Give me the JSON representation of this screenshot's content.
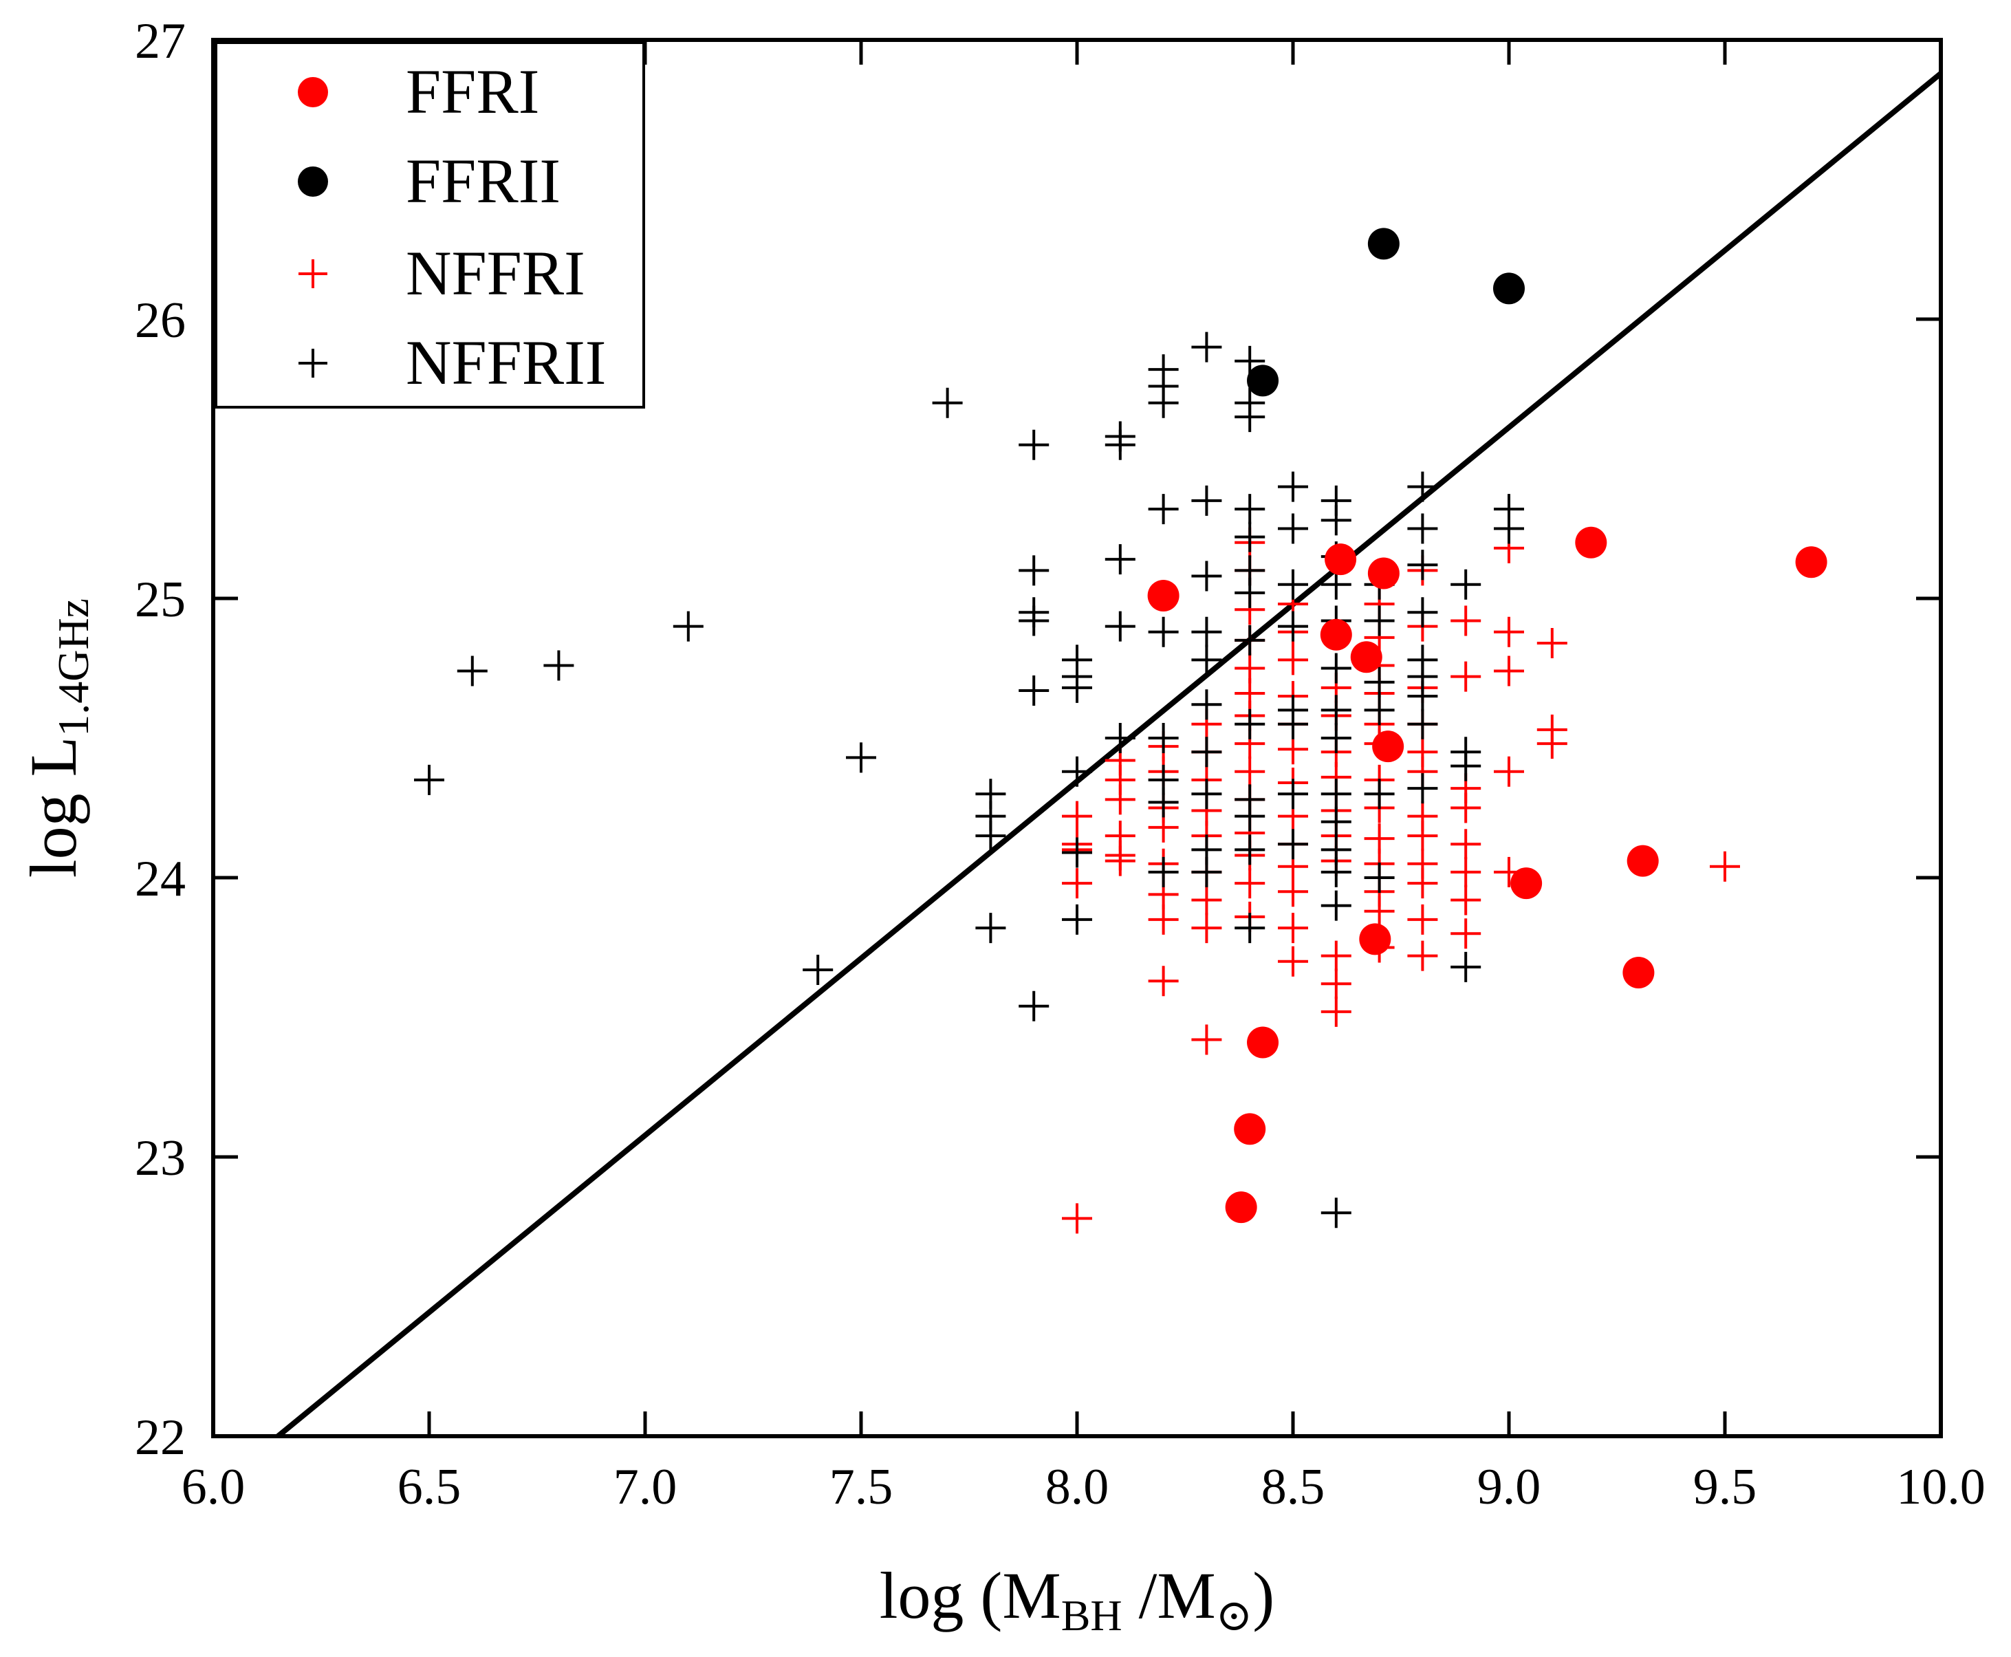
{
  "chart_data": {
    "type": "scatter",
    "title": "",
    "xlabel": "log (M_BH /M_⊙)",
    "ylabel": "log L_1.4GHz",
    "xlabel_parts": {
      "pre": "log (M",
      "sub": "BH",
      "mid": " /M",
      "sub2": "⊙",
      "post": ")"
    },
    "ylabel_parts": {
      "pre": "log L",
      "sub": "1.4GHz"
    },
    "xlim": [
      6.0,
      10.0
    ],
    "ylim": [
      22,
      27
    ],
    "xticks": [
      "6.0",
      "6.5",
      "7.0",
      "7.5",
      "8.0",
      "8.5",
      "9.0",
      "9.5",
      "10.0"
    ],
    "yticks": [
      "22",
      "23",
      "24",
      "25",
      "26",
      "27"
    ],
    "legend_position": "top-left",
    "fit_line": {
      "x": [
        6.15,
        10.0
      ],
      "y": [
        22.0,
        26.88
      ]
    },
    "series": [
      {
        "name": "FFRI",
        "marker": "circle",
        "color": "#ff0000",
        "points": [
          [
            8.2,
            25.01
          ],
          [
            8.61,
            25.14
          ],
          [
            8.71,
            25.09
          ],
          [
            8.6,
            24.87
          ],
          [
            8.67,
            24.79
          ],
          [
            8.72,
            24.47
          ],
          [
            8.69,
            23.78
          ],
          [
            8.43,
            23.41
          ],
          [
            8.4,
            23.1
          ],
          [
            8.38,
            22.82
          ],
          [
            9.04,
            23.98
          ],
          [
            9.19,
            25.2
          ],
          [
            9.31,
            24.06
          ],
          [
            9.3,
            23.66
          ],
          [
            9.7,
            25.13
          ]
        ]
      },
      {
        "name": "FFRII",
        "marker": "circle",
        "color": "#000000",
        "points": [
          [
            8.71,
            26.27
          ],
          [
            9.0,
            26.11
          ],
          [
            8.43,
            25.78
          ]
        ]
      },
      {
        "name": "NFFRI",
        "marker": "plus",
        "color": "#ff0000",
        "points": [
          [
            8.0,
            22.78
          ],
          [
            8.3,
            23.42
          ],
          [
            8.2,
            23.63
          ],
          [
            8.6,
            23.52
          ],
          [
            8.6,
            23.62
          ],
          [
            8.5,
            23.7
          ],
          [
            8.6,
            23.72
          ],
          [
            8.7,
            23.75
          ],
          [
            8.8,
            23.72
          ],
          [
            8.9,
            23.8
          ],
          [
            8.2,
            23.85
          ],
          [
            8.3,
            23.82
          ],
          [
            8.4,
            23.86
          ],
          [
            8.5,
            23.82
          ],
          [
            8.7,
            23.88
          ],
          [
            8.8,
            23.85
          ],
          [
            8.2,
            23.94
          ],
          [
            8.3,
            23.92
          ],
          [
            8.4,
            23.98
          ],
          [
            8.5,
            23.95
          ],
          [
            8.7,
            23.95
          ],
          [
            8.8,
            23.98
          ],
          [
            8.9,
            23.92
          ],
          [
            8.0,
            23.98
          ],
          [
            8.1,
            24.06
          ],
          [
            8.2,
            24.05
          ],
          [
            8.3,
            24.02
          ],
          [
            8.4,
            24.08
          ],
          [
            8.5,
            24.04
          ],
          [
            8.6,
            24.06
          ],
          [
            8.7,
            24.05
          ],
          [
            8.8,
            24.05
          ],
          [
            8.9,
            24.02
          ],
          [
            8.0,
            24.12
          ],
          [
            8.1,
            24.15
          ],
          [
            8.2,
            24.18
          ],
          [
            8.3,
            24.15
          ],
          [
            8.4,
            24.16
          ],
          [
            8.5,
            24.12
          ],
          [
            8.6,
            24.15
          ],
          [
            8.7,
            24.14
          ],
          [
            8.8,
            24.15
          ],
          [
            8.9,
            24.12
          ],
          [
            8.0,
            24.22
          ],
          [
            8.1,
            24.28
          ],
          [
            8.2,
            24.25
          ],
          [
            8.3,
            24.24
          ],
          [
            8.4,
            24.28
          ],
          [
            8.5,
            24.22
          ],
          [
            8.6,
            24.24
          ],
          [
            8.7,
            24.25
          ],
          [
            8.8,
            24.22
          ],
          [
            8.9,
            24.25
          ],
          [
            8.1,
            24.35
          ],
          [
            8.2,
            24.38
          ],
          [
            8.3,
            24.35
          ],
          [
            8.4,
            24.38
          ],
          [
            8.5,
            24.34
          ],
          [
            8.6,
            24.36
          ],
          [
            8.7,
            24.35
          ],
          [
            8.8,
            24.38
          ],
          [
            8.9,
            24.32
          ],
          [
            8.1,
            24.42
          ],
          [
            8.2,
            24.47
          ],
          [
            8.3,
            24.45
          ],
          [
            8.4,
            24.48
          ],
          [
            8.5,
            24.46
          ],
          [
            8.6,
            24.45
          ],
          [
            8.7,
            24.48
          ],
          [
            8.8,
            24.45
          ],
          [
            8.3,
            24.55
          ],
          [
            8.4,
            24.58
          ],
          [
            8.5,
            24.55
          ],
          [
            8.6,
            24.58
          ],
          [
            8.7,
            24.55
          ],
          [
            8.8,
            24.55
          ],
          [
            8.4,
            24.66
          ],
          [
            8.5,
            24.65
          ],
          [
            8.6,
            24.68
          ],
          [
            8.7,
            24.66
          ],
          [
            8.8,
            24.68
          ],
          [
            8.4,
            24.75
          ],
          [
            8.5,
            24.78
          ],
          [
            8.7,
            24.76
          ],
          [
            8.9,
            24.72
          ],
          [
            8.4,
            24.85
          ],
          [
            8.5,
            24.88
          ],
          [
            8.7,
            24.86
          ],
          [
            8.8,
            24.9
          ],
          [
            8.9,
            24.92
          ],
          [
            8.4,
            24.96
          ],
          [
            8.5,
            24.98
          ],
          [
            8.7,
            24.98
          ],
          [
            8.4,
            25.1
          ],
          [
            8.4,
            25.2
          ],
          [
            8.8,
            25.1
          ],
          [
            9.0,
            24.38
          ],
          [
            9.0,
            24.74
          ],
          [
            9.0,
            24.88
          ],
          [
            9.0,
            25.18
          ],
          [
            9.1,
            24.48
          ],
          [
            9.1,
            24.53
          ],
          [
            9.1,
            24.84
          ],
          [
            9.0,
            24.02
          ],
          [
            9.5,
            24.04
          ],
          [
            8.0,
            24.1
          ],
          [
            8.1,
            24.08
          ]
        ]
      },
      {
        "name": "NFFRII",
        "marker": "plus",
        "color": "#000000",
        "points": [
          [
            6.5,
            24.35
          ],
          [
            6.6,
            24.74
          ],
          [
            6.8,
            24.76
          ],
          [
            7.1,
            24.9
          ],
          [
            7.4,
            23.67
          ],
          [
            7.5,
            24.43
          ],
          [
            7.7,
            25.7
          ],
          [
            7.8,
            23.82
          ],
          [
            7.8,
            24.15
          ],
          [
            7.8,
            24.22
          ],
          [
            7.8,
            24.3
          ],
          [
            7.9,
            23.54
          ],
          [
            7.9,
            24.67
          ],
          [
            7.9,
            24.92
          ],
          [
            7.9,
            24.95
          ],
          [
            7.9,
            25.1
          ],
          [
            7.9,
            25.55
          ],
          [
            8.0,
            23.85
          ],
          [
            8.0,
            24.09
          ],
          [
            8.0,
            24.38
          ],
          [
            8.0,
            24.68
          ],
          [
            8.0,
            24.72
          ],
          [
            8.0,
            24.78
          ],
          [
            8.1,
            24.5
          ],
          [
            8.1,
            24.9
          ],
          [
            8.1,
            25.14
          ],
          [
            8.1,
            25.55
          ],
          [
            8.1,
            25.58
          ],
          [
            8.2,
            24.02
          ],
          [
            8.2,
            24.27
          ],
          [
            8.2,
            24.35
          ],
          [
            8.2,
            24.5
          ],
          [
            8.2,
            24.88
          ],
          [
            8.2,
            25.32
          ],
          [
            8.2,
            25.7
          ],
          [
            8.2,
            25.76
          ],
          [
            8.2,
            25.82
          ],
          [
            8.3,
            24.02
          ],
          [
            8.3,
            24.1
          ],
          [
            8.3,
            24.3
          ],
          [
            8.3,
            24.45
          ],
          [
            8.3,
            24.62
          ],
          [
            8.3,
            24.78
          ],
          [
            8.3,
            24.88
          ],
          [
            8.3,
            25.08
          ],
          [
            8.3,
            25.35
          ],
          [
            8.3,
            25.9
          ],
          [
            8.4,
            23.82
          ],
          [
            8.4,
            24.1
          ],
          [
            8.4,
            24.22
          ],
          [
            8.4,
            24.28
          ],
          [
            8.4,
            24.55
          ],
          [
            8.4,
            24.85
          ],
          [
            8.4,
            25.02
          ],
          [
            8.4,
            25.1
          ],
          [
            8.4,
            25.22
          ],
          [
            8.4,
            25.32
          ],
          [
            8.4,
            25.65
          ],
          [
            8.4,
            25.7
          ],
          [
            8.4,
            25.85
          ],
          [
            8.5,
            24.12
          ],
          [
            8.5,
            24.3
          ],
          [
            8.5,
            24.55
          ],
          [
            8.5,
            24.6
          ],
          [
            8.5,
            24.9
          ],
          [
            8.5,
            25.05
          ],
          [
            8.5,
            25.25
          ],
          [
            8.5,
            25.4
          ],
          [
            8.6,
            22.8
          ],
          [
            8.6,
            23.9
          ],
          [
            8.6,
            24.02
          ],
          [
            8.6,
            24.1
          ],
          [
            8.6,
            24.2
          ],
          [
            8.6,
            24.3
          ],
          [
            8.6,
            24.5
          ],
          [
            8.6,
            24.6
          ],
          [
            8.6,
            24.75
          ],
          [
            8.6,
            24.92
          ],
          [
            8.6,
            25.05
          ],
          [
            8.6,
            25.15
          ],
          [
            8.6,
            25.28
          ],
          [
            8.6,
            25.35
          ],
          [
            8.7,
            24.0
          ],
          [
            8.7,
            24.3
          ],
          [
            8.7,
            24.6
          ],
          [
            8.7,
            24.7
          ],
          [
            8.7,
            24.92
          ],
          [
            8.7,
            25.05
          ],
          [
            8.8,
            24.32
          ],
          [
            8.8,
            24.55
          ],
          [
            8.8,
            24.65
          ],
          [
            8.8,
            24.72
          ],
          [
            8.8,
            24.78
          ],
          [
            8.8,
            24.95
          ],
          [
            8.8,
            25.12
          ],
          [
            8.8,
            25.25
          ],
          [
            8.8,
            25.4
          ],
          [
            8.9,
            23.68
          ],
          [
            8.9,
            24.4
          ],
          [
            8.9,
            24.45
          ],
          [
            8.9,
            25.05
          ],
          [
            9.0,
            25.25
          ],
          [
            9.0,
            25.32
          ]
        ]
      }
    ]
  }
}
